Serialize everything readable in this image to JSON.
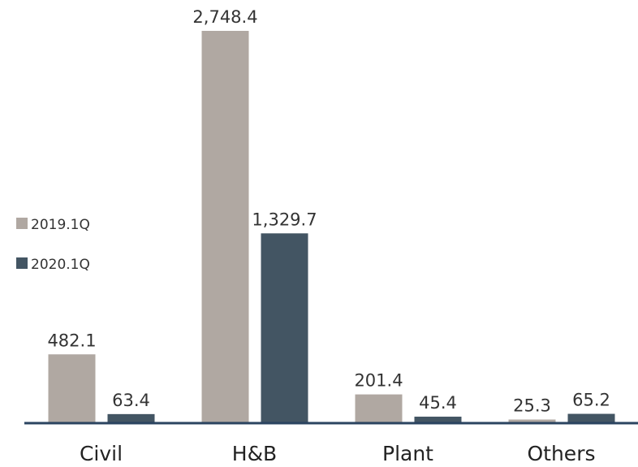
{
  "chart_data": {
    "type": "bar",
    "categories": [
      "Civil",
      "H&B",
      "Plant",
      "Others"
    ],
    "series": [
      {
        "name": "2019.1Q",
        "color": "#b0a8a2",
        "values": [
          482.1,
          2748.4,
          201.4,
          25.3
        ],
        "value_labels": [
          "482.1",
          "2,748.4",
          "201.4",
          "25.3"
        ]
      },
      {
        "name": "2020.1Q",
        "color": "#435563",
        "values": [
          63.4,
          1329.7,
          45.4,
          65.2
        ],
        "value_labels": [
          "63.4",
          "1,329.7",
          "45.4",
          "65.2"
        ]
      }
    ],
    "legend": "left"
  }
}
